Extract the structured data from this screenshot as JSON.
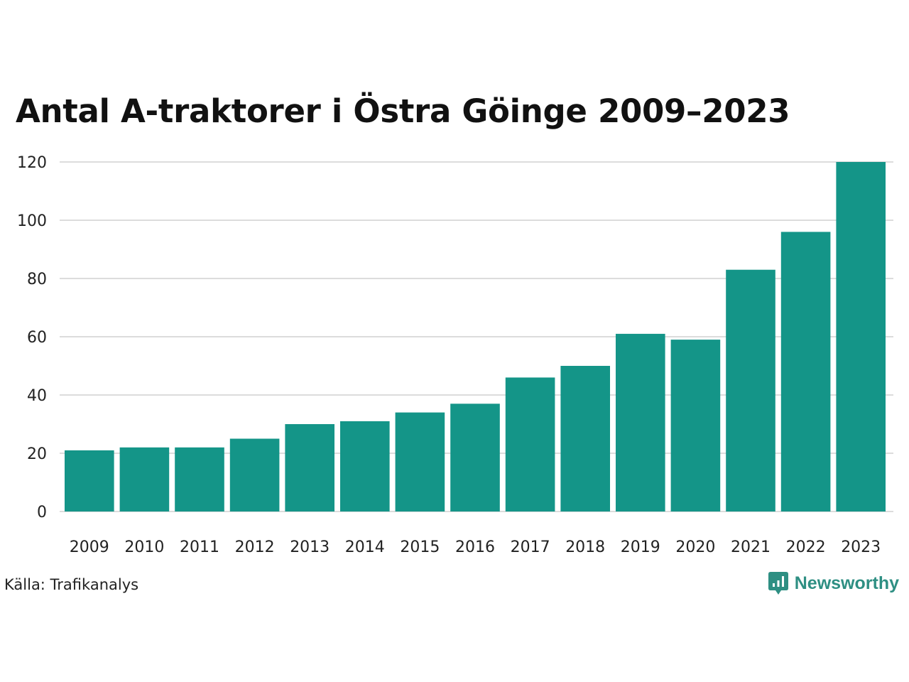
{
  "colors": {
    "bar": "#149588",
    "grid": "#dcdcdc",
    "brand": "#2e8f83"
  },
  "chart_data": {
    "type": "bar",
    "title": "Antal A-traktorer i Östra Göinge 2009–2023",
    "categories": [
      "2009",
      "2010",
      "2011",
      "2012",
      "2013",
      "2014",
      "2015",
      "2016",
      "2017",
      "2018",
      "2019",
      "2020",
      "2021",
      "2022",
      "2023"
    ],
    "values": [
      21,
      22,
      22,
      25,
      30,
      31,
      34,
      37,
      46,
      50,
      61,
      59,
      83,
      96,
      120
    ],
    "xlabel": "",
    "ylabel": "",
    "ylim": [
      0,
      120
    ],
    "yticks": [
      "0",
      "20",
      "40",
      "60",
      "80",
      "100",
      "120"
    ],
    "grid": true,
    "legend": "none"
  },
  "footer": {
    "source": "Källa: Trafikanalys",
    "brand_name": "Newsworthy",
    "brand_icon": "newsworthy-logo-icon"
  }
}
